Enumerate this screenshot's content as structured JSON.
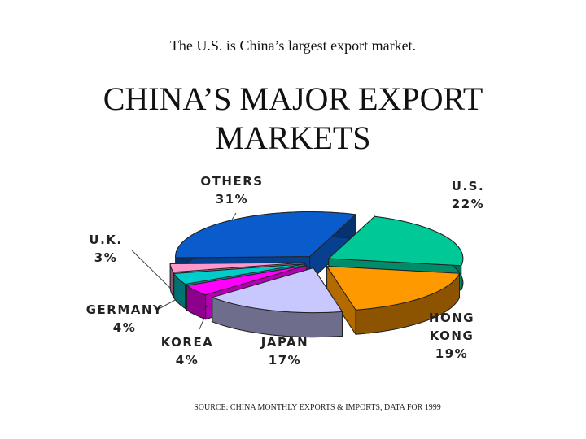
{
  "subtitle": "The U.S. is China’s largest export market.",
  "chart_data": {
    "type": "pie",
    "title": "CHINA’S MAJOR EXPORT MARKETS",
    "categories": [
      "U.S.",
      "HONG KONG",
      "JAPAN",
      "KOREA",
      "GERMANY",
      "U.K.",
      "OTHERS"
    ],
    "values": [
      22,
      19,
      17,
      4,
      4,
      3,
      31
    ],
    "value_labels": [
      "22%",
      "19%",
      "17%",
      "4%",
      "4%",
      "3%",
      "31%"
    ],
    "colors": [
      "#00c896",
      "#ff9900",
      "#c8c8ff",
      "#ff00ff",
      "#00cccc",
      "#ff99cc",
      "#0a5ccc"
    ],
    "source": "SOURCE:  CHINA MONTHLY EXPORTS & IMPORTS, DATA FOR 1999"
  }
}
